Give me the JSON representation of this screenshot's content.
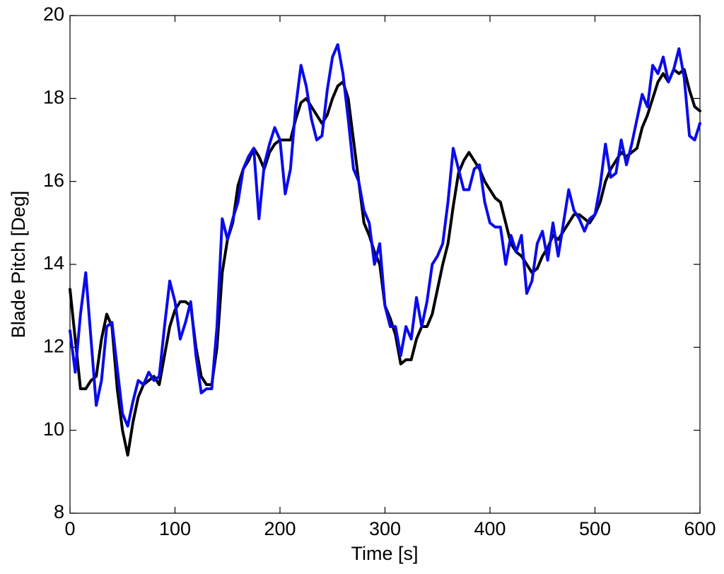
{
  "chart_data": {
    "type": "line",
    "xlabel": "Time [s]",
    "ylabel": "Blade Pitch [Deg]",
    "xlim": [
      0,
      600
    ],
    "xticks": [
      0,
      100,
      200,
      300,
      400,
      500,
      600
    ],
    "ylim": [
      8,
      20
    ],
    "yticks": [
      8,
      10,
      12,
      14,
      16,
      18,
      20
    ],
    "grid": false,
    "x": [
      0,
      5,
      10,
      15,
      20,
      25,
      30,
      35,
      40,
      45,
      50,
      55,
      60,
      65,
      70,
      75,
      80,
      85,
      90,
      95,
      100,
      105,
      110,
      115,
      120,
      125,
      130,
      135,
      140,
      145,
      150,
      155,
      160,
      165,
      170,
      175,
      180,
      185,
      190,
      195,
      200,
      205,
      210,
      215,
      220,
      225,
      230,
      235,
      240,
      245,
      250,
      255,
      260,
      265,
      270,
      275,
      280,
      285,
      290,
      295,
      300,
      305,
      310,
      315,
      320,
      325,
      330,
      335,
      340,
      345,
      350,
      355,
      360,
      365,
      370,
      375,
      380,
      385,
      390,
      395,
      400,
      405,
      410,
      415,
      420,
      425,
      430,
      435,
      440,
      445,
      450,
      455,
      460,
      465,
      470,
      475,
      480,
      485,
      490,
      495,
      500,
      505,
      510,
      515,
      520,
      525,
      530,
      535,
      540,
      545,
      550,
      555,
      560,
      565,
      570,
      575,
      580,
      585,
      590,
      595,
      600
    ],
    "series": [
      {
        "color": "#000000",
        "values": [
          13.4,
          12.2,
          11.0,
          11.0,
          11.2,
          11.3,
          12.2,
          12.8,
          12.5,
          11.0,
          10.0,
          9.4,
          10.2,
          10.8,
          11.1,
          11.2,
          11.3,
          11.1,
          11.8,
          12.5,
          12.9,
          13.1,
          13.1,
          13.0,
          12.0,
          11.3,
          11.1,
          11.1,
          12.0,
          13.8,
          14.6,
          15.0,
          15.9,
          16.3,
          16.5,
          16.8,
          16.6,
          16.3,
          16.7,
          16.9,
          17.0,
          17.0,
          17.0,
          17.5,
          17.9,
          18.0,
          17.8,
          17.6,
          17.4,
          17.6,
          18.0,
          18.3,
          18.4,
          18.0,
          17.0,
          16.0,
          15.0,
          14.7,
          14.3,
          14.0,
          13.0,
          12.7,
          12.3,
          11.6,
          11.7,
          11.7,
          12.2,
          12.5,
          12.5,
          12.8,
          13.4,
          14.0,
          14.5,
          15.4,
          16.2,
          16.5,
          16.7,
          16.5,
          16.3,
          16.0,
          15.8,
          15.6,
          15.5,
          15.0,
          14.5,
          14.3,
          14.2,
          14.0,
          13.8,
          13.9,
          14.2,
          14.4,
          14.7,
          14.6,
          14.8,
          15.0,
          15.2,
          15.2,
          15.1,
          15.0,
          15.2,
          15.5,
          16.0,
          16.3,
          16.5,
          16.7,
          16.6,
          16.7,
          16.8,
          17.3,
          17.6,
          18.0,
          18.4,
          18.6,
          18.4,
          18.7,
          18.6,
          18.7,
          18.2,
          17.8,
          17.7
        ]
      },
      {
        "color": "#0a0aee",
        "values": [
          12.4,
          11.4,
          12.8,
          13.8,
          12.2,
          10.6,
          11.2,
          12.5,
          12.6,
          11.5,
          10.4,
          10.1,
          10.7,
          11.2,
          11.1,
          11.4,
          11.2,
          11.3,
          12.5,
          13.6,
          13.1,
          12.2,
          12.6,
          13.1,
          11.8,
          10.9,
          11.0,
          11.0,
          12.5,
          15.1,
          14.6,
          15.1,
          15.5,
          16.3,
          16.6,
          16.8,
          15.1,
          16.4,
          16.9,
          17.3,
          17.0,
          15.7,
          16.3,
          17.8,
          18.8,
          18.3,
          17.5,
          17.0,
          17.1,
          18.2,
          19.0,
          19.3,
          18.6,
          17.5,
          16.3,
          16.0,
          15.3,
          15.0,
          14.0,
          14.5,
          13.0,
          12.5,
          12.5,
          11.8,
          12.5,
          12.2,
          13.2,
          12.5,
          13.1,
          14.0,
          14.2,
          14.5,
          15.5,
          16.8,
          16.3,
          15.8,
          15.8,
          16.3,
          16.4,
          15.5,
          15.0,
          14.9,
          14.9,
          14.0,
          14.7,
          14.3,
          14.7,
          13.3,
          13.6,
          14.5,
          14.8,
          14.1,
          15.0,
          14.2,
          15.0,
          15.8,
          15.3,
          15.1,
          14.8,
          15.1,
          15.2,
          15.9,
          16.9,
          16.1,
          16.2,
          17.0,
          16.4,
          16.9,
          17.5,
          18.1,
          17.8,
          18.8,
          18.6,
          19.0,
          18.4,
          18.7,
          19.2,
          18.5,
          17.1,
          17.0,
          17.4
        ]
      }
    ]
  }
}
